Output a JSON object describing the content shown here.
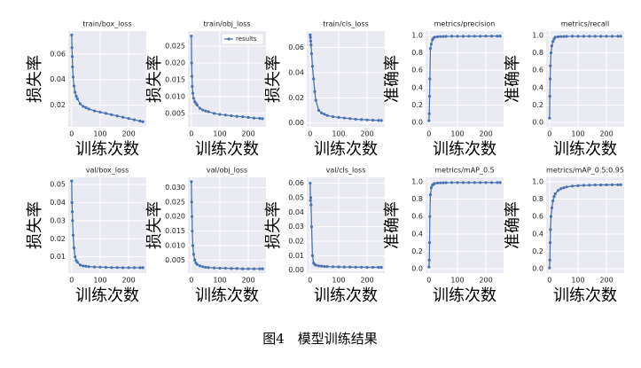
{
  "chart_data": [
    {
      "type": "line",
      "title": "train/box_loss",
      "xlabel": "训练次数",
      "ylabel": "损失率",
      "color": "#4c72b0",
      "x": [
        0,
        1,
        2,
        3,
        5,
        8,
        12,
        16,
        20,
        30,
        40,
        50,
        60,
        80,
        100,
        120,
        140,
        160,
        180,
        200,
        220,
        240,
        250
      ],
      "values": [
        0.075,
        0.065,
        0.058,
        0.05,
        0.042,
        0.035,
        0.03,
        0.027,
        0.025,
        0.021,
        0.019,
        0.018,
        0.017,
        0.0155,
        0.0145,
        0.0135,
        0.0125,
        0.0115,
        0.0105,
        0.0095,
        0.0085,
        0.0075,
        0.007
      ],
      "xlim": [
        -12,
        262
      ],
      "xticks": [
        0,
        100,
        200
      ],
      "ylim": [
        0.003,
        0.078
      ],
      "yticks": [
        0.02,
        0.04,
        0.06
      ],
      "grid": true
    },
    {
      "type": "line",
      "title": "train/obj_loss",
      "xlabel": "训练次数",
      "ylabel": "损失率",
      "x": [
        0,
        1,
        2,
        3,
        5,
        8,
        12,
        16,
        20,
        30,
        40,
        50,
        60,
        80,
        100,
        120,
        140,
        160,
        180,
        200,
        220,
        240,
        250
      ],
      "series": [
        {
          "name": "results",
          "color": "#4c72b0",
          "values": [
            0.028,
            0.02,
            0.016,
            0.013,
            0.011,
            0.0095,
            0.0085,
            0.008,
            0.0075,
            0.0065,
            0.006,
            0.0057,
            0.0055,
            0.005,
            0.0047,
            0.0045,
            0.0043,
            0.0041,
            0.004,
            0.0038,
            0.0036,
            0.0035,
            0.0034
          ]
        }
      ],
      "xlim": [
        -12,
        262
      ],
      "xticks": [
        0,
        100,
        200
      ],
      "ylim": [
        0.001,
        0.0295
      ],
      "yticks": [
        0.005,
        {
          "value": 0.01,
          "label": "0.010"
        },
        0.015,
        {
          "value": 0.02,
          "label": "0.020"
        },
        0.025
      ],
      "grid": true,
      "legend": "upper right"
    },
    {
      "type": "line",
      "title": "train/cls_loss",
      "xlabel": "训练次数",
      "ylabel": "损失率",
      "color": "#4c72b0",
      "x": [
        0,
        1,
        2,
        3,
        5,
        8,
        12,
        16,
        20,
        30,
        40,
        50,
        60,
        80,
        100,
        120,
        140,
        160,
        180,
        200,
        220,
        240,
        250
      ],
      "values": [
        0.07,
        0.068,
        0.065,
        0.062,
        0.055,
        0.045,
        0.035,
        0.025,
        0.018,
        0.01,
        0.008,
        0.007,
        0.006,
        0.005,
        0.0045,
        0.004,
        0.0035,
        0.003,
        0.0028,
        0.0025,
        0.0023,
        0.0021,
        0.002
      ],
      "xlim": [
        -12,
        262
      ],
      "xticks": [
        0,
        100,
        200
      ],
      "ylim": [
        -0.003,
        0.073
      ],
      "yticks": [
        {
          "value": 0,
          "label": "0.00"
        },
        0.02,
        0.04,
        0.06
      ],
      "grid": true
    },
    {
      "type": "line",
      "title": "metrics/precision",
      "xlabel": "训练次数",
      "ylabel": "准确率",
      "color": "#4c72b0",
      "x": [
        0,
        1,
        2,
        3,
        5,
        8,
        12,
        16,
        20,
        30,
        40,
        50,
        60,
        80,
        100,
        120,
        140,
        160,
        180,
        200,
        220,
        240,
        250
      ],
      "values": [
        0.02,
        0.1,
        0.3,
        0.5,
        0.85,
        0.9,
        0.95,
        0.97,
        0.98,
        0.985,
        0.987,
        0.988,
        0.989,
        0.99,
        0.99,
        0.99,
        0.991,
        0.991,
        0.991,
        0.992,
        0.992,
        0.992,
        0.992
      ],
      "xlim": [
        -12,
        262
      ],
      "xticks": [
        0,
        100,
        200
      ],
      "ylim": [
        -0.05,
        1.05
      ],
      "yticks": [
        {
          "value": 0,
          "label": "0.0"
        },
        0.2,
        0.4,
        0.6,
        0.8,
        {
          "value": 1,
          "label": "1.0"
        }
      ],
      "grid": true
    },
    {
      "type": "line",
      "title": "metrics/recall",
      "xlabel": "训练次数",
      "ylabel": "准确率",
      "color": "#4c72b0",
      "x": [
        0,
        1,
        2,
        3,
        5,
        8,
        12,
        16,
        20,
        30,
        40,
        50,
        60,
        80,
        100,
        120,
        140,
        160,
        180,
        200,
        220,
        240,
        250
      ],
      "values": [
        0.05,
        0.3,
        0.5,
        0.65,
        0.8,
        0.88,
        0.93,
        0.96,
        0.98,
        0.985,
        0.987,
        0.988,
        0.989,
        0.99,
        0.99,
        0.99,
        0.99,
        0.99,
        0.99,
        0.99,
        0.99,
        0.99,
        0.99
      ],
      "xlim": [
        -12,
        262
      ],
      "xticks": [
        0,
        100,
        200
      ],
      "ylim": [
        -0.05,
        1.05
      ],
      "yticks": [
        {
          "value": 0,
          "label": "0.0"
        },
        0.2,
        0.4,
        0.6,
        0.8,
        {
          "value": 1,
          "label": "1.0"
        }
      ],
      "grid": true
    },
    {
      "type": "line",
      "title": "val/box_loss",
      "xlabel": "训练次数",
      "ylabel": "损失率",
      "color": "#4c72b0",
      "x": [
        0,
        1,
        2,
        3,
        5,
        8,
        12,
        16,
        20,
        30,
        40,
        50,
        60,
        80,
        100,
        120,
        140,
        160,
        180,
        200,
        220,
        240,
        250
      ],
      "values": [
        0.052,
        0.04,
        0.035,
        0.03,
        0.022,
        0.015,
        0.01,
        0.008,
        0.007,
        0.0055,
        0.005,
        0.0048,
        0.0046,
        0.0044,
        0.0043,
        0.0042,
        0.0041,
        0.0041,
        0.004,
        0.004,
        0.004,
        0.004,
        0.004
      ],
      "xlim": [
        -12,
        262
      ],
      "xticks": [
        0,
        100,
        200
      ],
      "ylim": [
        0.001,
        0.054
      ],
      "yticks": [
        0.01,
        0.02,
        0.03,
        0.04,
        0.05
      ],
      "grid": true
    },
    {
      "type": "line",
      "title": "val/obj_loss",
      "xlabel": "训练次数",
      "ylabel": "损失率",
      "color": "#4c72b0",
      "x": [
        0,
        1,
        2,
        3,
        5,
        8,
        12,
        16,
        20,
        30,
        40,
        50,
        60,
        80,
        100,
        120,
        140,
        160,
        180,
        200,
        220,
        240,
        250
      ],
      "values": [
        0.032,
        0.025,
        0.02,
        0.015,
        0.01,
        0.007,
        0.005,
        0.004,
        0.0035,
        0.003,
        0.0027,
        0.0025,
        0.0024,
        0.0023,
        0.0022,
        0.0022,
        0.0021,
        0.0021,
        0.002,
        0.002,
        0.002,
        0.002,
        0.002
      ],
      "xlim": [
        -12,
        262
      ],
      "xticks": [
        0,
        100,
        200
      ],
      "ylim": [
        0.0005,
        0.0335
      ],
      "yticks": [
        0.005,
        {
          "value": 0.01,
          "label": "0.010"
        },
        0.015,
        {
          "value": 0.02,
          "label": "0.020"
        },
        0.025,
        {
          "value": 0.03,
          "label": "0.030"
        }
      ],
      "grid": true
    },
    {
      "type": "line",
      "title": "val/cls_loss",
      "xlabel": "训练次数",
      "ylabel": "损失率",
      "color": "#4c72b0",
      "x": [
        0,
        1,
        2,
        3,
        5,
        8,
        12,
        16,
        20,
        30,
        40,
        50,
        60,
        80,
        100,
        120,
        140,
        160,
        180,
        200,
        220,
        240,
        250
      ],
      "values": [
        0.06,
        0.048,
        0.05,
        0.045,
        0.03,
        0.01,
        0.005,
        0.004,
        0.0035,
        0.003,
        0.0028,
        0.0026,
        0.0025,
        0.0024,
        0.0023,
        0.0022,
        0.0022,
        0.0021,
        0.0021,
        0.002,
        0.002,
        0.002,
        0.002
      ],
      "xlim": [
        -12,
        262
      ],
      "xticks": [
        0,
        100,
        200
      ],
      "ylim": [
        -0.002,
        0.064
      ],
      "yticks": [
        {
          "value": 0,
          "label": "0.00"
        },
        0.01,
        0.02,
        0.03,
        0.04,
        0.05,
        0.06
      ],
      "grid": true
    },
    {
      "type": "line",
      "title": "metrics/mAP_0.5",
      "xlabel": "训练次数",
      "ylabel": "准确率",
      "color": "#4c72b0",
      "x": [
        0,
        1,
        2,
        3,
        5,
        8,
        12,
        16,
        20,
        30,
        40,
        50,
        60,
        80,
        100,
        120,
        140,
        160,
        180,
        200,
        220,
        240,
        250
      ],
      "values": [
        0.02,
        0.1,
        0.3,
        0.6,
        0.85,
        0.93,
        0.96,
        0.97,
        0.98,
        0.985,
        0.987,
        0.988,
        0.989,
        0.99,
        0.99,
        0.99,
        0.99,
        0.99,
        0.99,
        0.99,
        0.99,
        0.99,
        0.99
      ],
      "xlim": [
        -12,
        262
      ],
      "xticks": [
        0,
        100,
        200
      ],
      "ylim": [
        -0.05,
        1.05
      ],
      "yticks": [
        {
          "value": 0,
          "label": "0.0"
        },
        0.2,
        0.4,
        0.6,
        0.8,
        {
          "value": 1,
          "label": "1.0"
        }
      ],
      "grid": true
    },
    {
      "type": "line",
      "title": "metrics/mAP_0.5:0.95",
      "xlabel": "训练次数",
      "ylabel": "准确率",
      "color": "#4c72b0",
      "x": [
        0,
        1,
        2,
        3,
        5,
        8,
        12,
        16,
        20,
        30,
        40,
        50,
        60,
        80,
        100,
        120,
        140,
        160,
        180,
        200,
        220,
        240,
        250
      ],
      "values": [
        0.01,
        0.1,
        0.3,
        0.45,
        0.6,
        0.7,
        0.78,
        0.83,
        0.86,
        0.9,
        0.92,
        0.93,
        0.94,
        0.95,
        0.955,
        0.958,
        0.96,
        0.962,
        0.963,
        0.964,
        0.965,
        0.965,
        0.965
      ],
      "xlim": [
        -12,
        262
      ],
      "xticks": [
        0,
        100,
        200
      ],
      "ylim": [
        -0.05,
        1.05
      ],
      "yticks": [
        {
          "value": 0,
          "label": "0.0"
        },
        0.2,
        0.4,
        0.6,
        0.8,
        {
          "value": 1,
          "label": "1.0"
        }
      ],
      "grid": true
    }
  ],
  "caption": "图4　模型训练结果"
}
